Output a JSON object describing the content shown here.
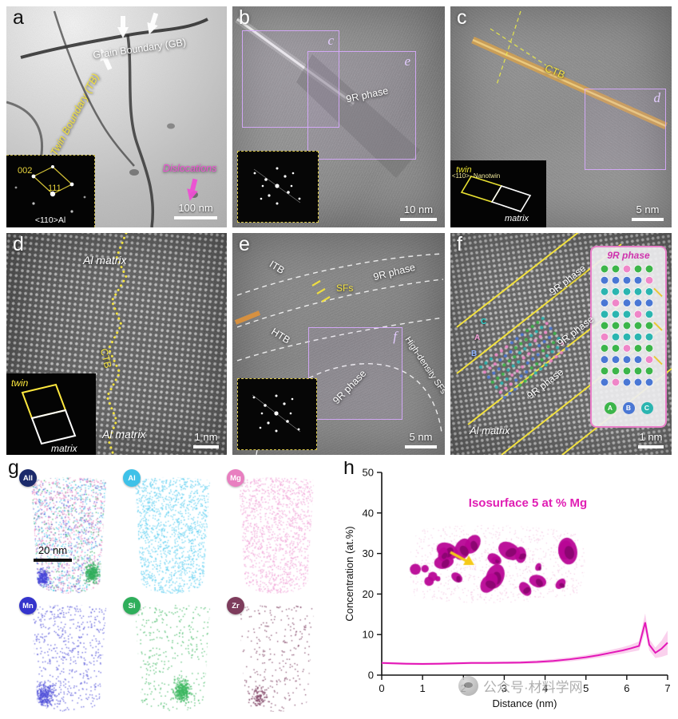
{
  "panels": {
    "a": {
      "letter": "a",
      "grain_boundary": "Grain Boundary (GB)",
      "twin_boundary": "Twin Boundary (TB)",
      "dislocations": "Dislocations",
      "inset": {
        "spot1": "002",
        "spot2": "111",
        "zone_axis": "<110>Al"
      },
      "scale_bar": "100 nm"
    },
    "b": {
      "letter": "b",
      "region_c": "c",
      "region_e": "e",
      "phase": "9R phase",
      "scale_bar": "10 nm"
    },
    "c": {
      "letter": "c",
      "ctb": "CTB",
      "region_d": "d",
      "inset": {
        "twin": "twin",
        "matrix": "matrix",
        "zone_axis": "<110>- Nanotwin"
      },
      "scale_bar": "5 nm"
    },
    "d": {
      "letter": "d",
      "matrix_top": "Al matrix",
      "ctb": "CTB",
      "matrix_bottom": "Al matrix",
      "inset": {
        "twin": "twin",
        "matrix": "matrix"
      },
      "scale_bar": "1 nm"
    },
    "e": {
      "letter": "e",
      "itb": "ITB",
      "sfs": "SFs",
      "phase_upper": "9R phase",
      "htb": "HTB",
      "region_f": "f",
      "phase_lower": "9R phase",
      "high_density": "High-density SFs",
      "scale_bar": "5 nm"
    },
    "f": {
      "letter": "f",
      "phase_labels": [
        "9R phase",
        "9R phase",
        "9R phase"
      ],
      "site_labels": [
        "C",
        "A",
        "B"
      ],
      "al_matrix": "Al matrix",
      "inset": {
        "title": "9R phase",
        "stacking_sequence": "ABCBCACAB",
        "legend": [
          {
            "label": "A",
            "color": "#3cb54a"
          },
          {
            "label": "B",
            "color": "#4a77d4"
          },
          {
            "label": "C",
            "color": "#2bb5b0"
          }
        ],
        "solute_color": "#ef86c8"
      },
      "scale_bar": "1 nm"
    },
    "g": {
      "letter": "g",
      "scale_bar": "20 nm",
      "maps": [
        {
          "name": "All",
          "badge_color": "#1b2a6b",
          "dot_colors": [
            "#e87fc0",
            "#45c8e8",
            "#4646d8",
            "#2fae5b",
            "#8a5c9e"
          ]
        },
        {
          "name": "Al",
          "badge_color": "#3ec1e8",
          "dot_colors": [
            "#58cdf0"
          ]
        },
        {
          "name": "Mg",
          "badge_color": "#e87fc0",
          "dot_colors": [
            "#f0a0d6"
          ]
        },
        {
          "name": "Mn",
          "badge_color": "#3434cc",
          "dot_colors": [
            "#4d4dd8"
          ]
        },
        {
          "name": "Si",
          "badge_color": "#2fae5b",
          "dot_colors": [
            "#3cb860"
          ]
        },
        {
          "name": "Zr",
          "badge_color": "#7d3c5c",
          "dot_colors": [
            "#7a3b5e"
          ]
        }
      ]
    },
    "h": {
      "letter": "h"
    }
  },
  "watermark": {
    "text": "公众号·材料学网"
  },
  "chart_data": {
    "type": "line",
    "title": "",
    "xlabel": "Distance (nm)",
    "ylabel": "Concentration (at.%)",
    "xlim": [
      0,
      7
    ],
    "ylim": [
      0,
      50
    ],
    "xticks": [
      0,
      1,
      2,
      3,
      4,
      5,
      6,
      7
    ],
    "yticks": [
      0,
      10,
      20,
      30,
      40,
      50
    ],
    "annotation": "Isosurface 5 at % Mg",
    "legend_position": "none",
    "grid": false,
    "series": [
      {
        "name": "Mg concentration",
        "color": "#e318b8",
        "band_color": "#f49ad8",
        "x": [
          0,
          0.3,
          0.6,
          1,
          1.4,
          1.8,
          2.2,
          2.6,
          3,
          3.4,
          3.8,
          4.2,
          4.6,
          5,
          5.3,
          5.6,
          5.9,
          6.1,
          6.3,
          6.45,
          6.55,
          6.7,
          6.85,
          7
        ],
        "y": [
          3,
          2.9,
          2.8,
          2.75,
          2.8,
          2.9,
          3,
          3,
          3.05,
          3.1,
          3.25,
          3.5,
          3.9,
          4.4,
          4.9,
          5.5,
          6.1,
          6.6,
          7.2,
          13,
          7.5,
          5.5,
          6.5,
          8
        ],
        "y_err": [
          0.3,
          0.3,
          0.3,
          0.3,
          0.3,
          0.3,
          0.3,
          0.3,
          0.3,
          0.35,
          0.4,
          0.45,
          0.5,
          0.55,
          0.6,
          0.7,
          0.8,
          0.9,
          1.1,
          2.2,
          1.4,
          1.3,
          2,
          3
        ]
      }
    ]
  }
}
